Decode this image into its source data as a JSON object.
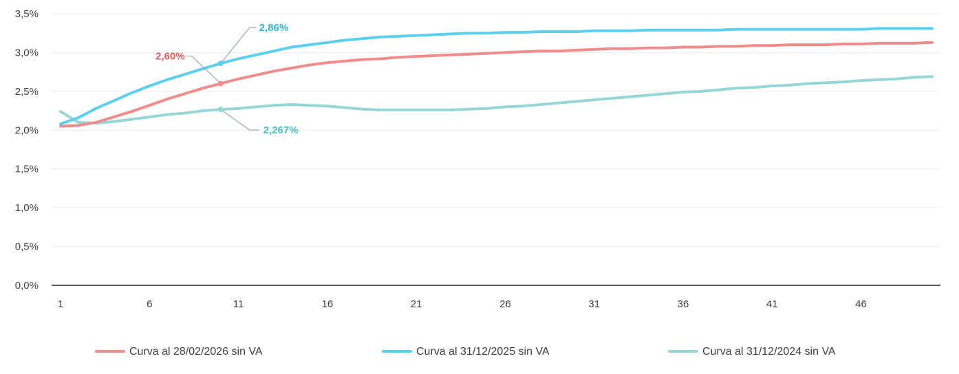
{
  "chart_data": {
    "type": "line",
    "title": "",
    "xlabel": "",
    "ylabel": "",
    "x": [
      1,
      2,
      3,
      4,
      5,
      6,
      7,
      8,
      9,
      10,
      11,
      12,
      13,
      14,
      15,
      16,
      17,
      18,
      19,
      20,
      21,
      22,
      23,
      24,
      25,
      26,
      27,
      28,
      29,
      30,
      31,
      32,
      33,
      34,
      35,
      36,
      37,
      38,
      39,
      40,
      41,
      42,
      43,
      44,
      45,
      46,
      47,
      48,
      49,
      50
    ],
    "xlim": [
      0.5,
      50.5
    ],
    "ylim": [
      0,
      3.5
    ],
    "x_ticks": [
      1,
      6,
      11,
      16,
      21,
      26,
      31,
      36,
      41,
      46
    ],
    "x_tick_labels": [
      "1",
      "6",
      "11",
      "16",
      "21",
      "26",
      "31",
      "36",
      "41",
      "46"
    ],
    "y_ticks": [
      0,
      0.5,
      1.0,
      1.5,
      2.0,
      2.5,
      3.0,
      3.5
    ],
    "y_tick_labels": [
      "0,0%",
      "0,5%",
      "1,0%",
      "1,5%",
      "2,0%",
      "2,5%",
      "3,0%",
      "3,5%"
    ],
    "grid": "horizontal",
    "legend_position": "bottom",
    "series": [
      {
        "name": "Curva al 28/02/2026 sin VA",
        "color": "#f08c8c",
        "values": [
          2.05,
          2.06,
          2.1,
          2.17,
          2.24,
          2.32,
          2.4,
          2.47,
          2.54,
          2.6,
          2.66,
          2.71,
          2.76,
          2.8,
          2.84,
          2.87,
          2.89,
          2.91,
          2.92,
          2.94,
          2.95,
          2.96,
          2.97,
          2.98,
          2.99,
          3.0,
          3.01,
          3.02,
          3.02,
          3.03,
          3.04,
          3.05,
          3.05,
          3.06,
          3.06,
          3.07,
          3.07,
          3.08,
          3.08,
          3.09,
          3.09,
          3.1,
          3.1,
          3.1,
          3.11,
          3.11,
          3.12,
          3.12,
          3.12,
          3.13
        ]
      },
      {
        "name": "Curva al 31/12/2025 sin VA",
        "color": "#5ccfee",
        "values": [
          2.08,
          2.16,
          2.28,
          2.38,
          2.48,
          2.57,
          2.65,
          2.72,
          2.79,
          2.86,
          2.92,
          2.97,
          3.02,
          3.07,
          3.1,
          3.13,
          3.16,
          3.18,
          3.2,
          3.21,
          3.22,
          3.23,
          3.24,
          3.25,
          3.25,
          3.26,
          3.26,
          3.27,
          3.27,
          3.27,
          3.28,
          3.28,
          3.28,
          3.29,
          3.29,
          3.29,
          3.29,
          3.29,
          3.3,
          3.3,
          3.3,
          3.3,
          3.3,
          3.3,
          3.3,
          3.3,
          3.31,
          3.31,
          3.31,
          3.31
        ]
      },
      {
        "name": "Curva al 31/12/2024 sin VA",
        "color": "#97d6d6",
        "values": [
          2.24,
          2.1,
          2.09,
          2.11,
          2.14,
          2.17,
          2.2,
          2.22,
          2.25,
          2.267,
          2.28,
          2.3,
          2.32,
          2.33,
          2.32,
          2.31,
          2.29,
          2.27,
          2.26,
          2.26,
          2.26,
          2.26,
          2.26,
          2.27,
          2.28,
          2.3,
          2.31,
          2.33,
          2.35,
          2.37,
          2.39,
          2.41,
          2.43,
          2.45,
          2.47,
          2.49,
          2.5,
          2.52,
          2.54,
          2.55,
          2.57,
          2.58,
          2.6,
          2.61,
          2.62,
          2.64,
          2.65,
          2.66,
          2.68,
          2.69
        ]
      }
    ],
    "annotations": [
      {
        "text": "2,60%",
        "series": 0,
        "x": 10,
        "y": 2.6,
        "color": "#e05a5a"
      },
      {
        "text": "2,86%",
        "series": 1,
        "x": 10,
        "y": 2.86,
        "color": "#29b5da"
      },
      {
        "text": "2,267%",
        "series": 2,
        "x": 10,
        "y": 2.267,
        "color": "#4fbdc4"
      }
    ]
  }
}
